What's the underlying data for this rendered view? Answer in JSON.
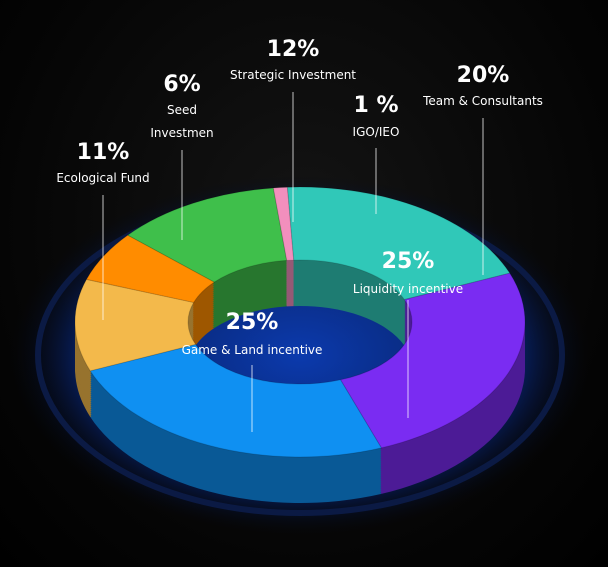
{
  "chart_data": {
    "type": "pie",
    "categories": [
      "Strategic Investment",
      "IGO/IEO",
      "Team & Consultants",
      "Liquidity incentive",
      "Game & Land incentive",
      "Ecological Fund",
      "Seed Investmen"
    ],
    "values": [
      12,
      1,
      20,
      25,
      25,
      11,
      6
    ],
    "value_labels": [
      "12%",
      "1 %",
      "20%",
      "25%",
      "25%",
      "11%",
      "6%"
    ],
    "colors": [
      "#3fbf4b",
      "#f28fbd",
      "#30c8b8",
      "#7a2cf2",
      "#0f90f2",
      "#f3b94b",
      "#ff8c00"
    ]
  }
}
